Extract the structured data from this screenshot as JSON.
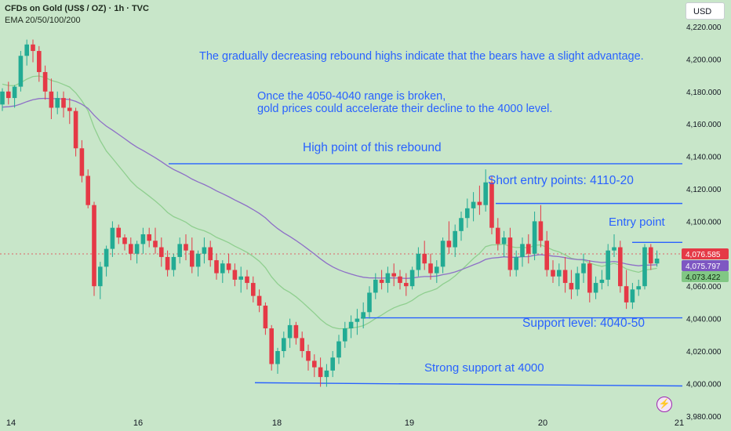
{
  "header": {
    "symbol_title": "CFDs on Gold (US$ / OZ) · 1h · TVC",
    "indicator": "EMA 20/50/100/200"
  },
  "currency_button": "USD",
  "colors": {
    "background": "#c8e6c9",
    "up_candle": "#22ab94",
    "down_candle": "#e53946",
    "annotation_blue": "#2962ff",
    "ema_fast": "#8fcf8f",
    "ema_slow": "#8e6fc7"
  },
  "chart_data": {
    "type": "candlestick",
    "title": "CFDs on Gold (US$ / OZ) · 1h · TVC",
    "x_tick_labels": [
      "14",
      "16",
      "18",
      "19",
      "20",
      "21"
    ],
    "ylim": [
      3975,
      4228
    ],
    "y_tick_labels": [
      "4,220.000",
      "4,200.000",
      "4,180.000",
      "4,160.000",
      "4,140.000",
      "4,120.000",
      "4,100.000",
      "4,080.000",
      "4,060.000",
      "4,040.000",
      "4,020.000",
      "4,000.000",
      "3,980.000"
    ],
    "y_ticks": [
      4220,
      4200,
      4180,
      4160,
      4140,
      4120,
      4100,
      4080,
      4060,
      4040,
      4020,
      4000,
      3980
    ],
    "price_labels": [
      {
        "value": 4076.585,
        "text": "4,076.585",
        "color": "#e53946"
      },
      {
        "value": 4075.797,
        "text": "4,075.797",
        "color": "#7e57c2"
      },
      {
        "value": 4073.422,
        "text": "4,073.422",
        "color": "#81c784"
      }
    ],
    "candles": [
      [
        4172,
        4182,
        4168,
        4180
      ],
      [
        4180,
        4186,
        4172,
        4176
      ],
      [
        4176,
        4184,
        4170,
        4183
      ],
      [
        4183,
        4205,
        4180,
        4202
      ],
      [
        4202,
        4212,
        4196,
        4209
      ],
      [
        4209,
        4212,
        4198,
        4205
      ],
      [
        4205,
        4208,
        4186,
        4192
      ],
      [
        4192,
        4196,
        4175,
        4180
      ],
      [
        4180,
        4188,
        4163,
        4170
      ],
      [
        4170,
        4180,
        4166,
        4176
      ],
      [
        4176,
        4180,
        4164,
        4170
      ],
      [
        4170,
        4176,
        4160,
        4168
      ],
      [
        4168,
        4170,
        4140,
        4145
      ],
      [
        4145,
        4150,
        4124,
        4128
      ],
      [
        4128,
        4132,
        4108,
        4110
      ],
      [
        4110,
        4112,
        4054,
        4060
      ],
      [
        4060,
        4075,
        4052,
        4072
      ],
      [
        4072,
        4085,
        4066,
        4083
      ],
      [
        4083,
        4100,
        4078,
        4096
      ],
      [
        4096,
        4098,
        4086,
        4090
      ],
      [
        4090,
        4092,
        4082,
        4086
      ],
      [
        4086,
        4090,
        4076,
        4080
      ],
      [
        4080,
        4088,
        4074,
        4086
      ],
      [
        4086,
        4096,
        4080,
        4092
      ],
      [
        4092,
        4096,
        4084,
        4088
      ],
      [
        4088,
        4096,
        4080,
        4084
      ],
      [
        4084,
        4090,
        4072,
        4078
      ],
      [
        4078,
        4082,
        4066,
        4070
      ],
      [
        4070,
        4080,
        4066,
        4078
      ],
      [
        4078,
        4090,
        4074,
        4086
      ],
      [
        4086,
        4092,
        4076,
        4082
      ],
      [
        4082,
        4090,
        4068,
        4072
      ],
      [
        4072,
        4082,
        4066,
        4080
      ],
      [
        4080,
        4090,
        4074,
        4084
      ],
      [
        4084,
        4088,
        4072,
        4076
      ],
      [
        4076,
        4080,
        4064,
        4068
      ],
      [
        4068,
        4076,
        4062,
        4074
      ],
      [
        4074,
        4080,
        4068,
        4070
      ],
      [
        4070,
        4074,
        4060,
        4064
      ],
      [
        4064,
        4072,
        4056,
        4066
      ],
      [
        4066,
        4070,
        4058,
        4062
      ],
      [
        4062,
        4066,
        4050,
        4054
      ],
      [
        4054,
        4058,
        4044,
        4048
      ],
      [
        4048,
        4050,
        4030,
        4034
      ],
      [
        4034,
        4036,
        4008,
        4012
      ],
      [
        4012,
        4022,
        4006,
        4020
      ],
      [
        4020,
        4032,
        4016,
        4028
      ],
      [
        4028,
        4040,
        4022,
        4036
      ],
      [
        4036,
        4038,
        4024,
        4028
      ],
      [
        4028,
        4032,
        4016,
        4020
      ],
      [
        4020,
        4024,
        4008,
        4014
      ],
      [
        4014,
        4018,
        4004,
        4010
      ],
      [
        4010,
        4016,
        3998,
        4004
      ],
      [
        4004,
        4012,
        3998,
        4008
      ],
      [
        4008,
        4020,
        4004,
        4016
      ],
      [
        4016,
        4030,
        4012,
        4026
      ],
      [
        4026,
        4038,
        4022,
        4034
      ],
      [
        4034,
        4042,
        4028,
        4038
      ],
      [
        4038,
        4046,
        4030,
        4040
      ],
      [
        4040,
        4050,
        4034,
        4044
      ],
      [
        4044,
        4060,
        4040,
        4056
      ],
      [
        4056,
        4068,
        4052,
        4064
      ],
      [
        4064,
        4070,
        4058,
        4062
      ],
      [
        4062,
        4072,
        4056,
        4068
      ],
      [
        4068,
        4074,
        4060,
        4066
      ],
      [
        4066,
        4070,
        4058,
        4062
      ],
      [
        4062,
        4068,
        4054,
        4060
      ],
      [
        4060,
        4072,
        4058,
        4070
      ],
      [
        4070,
        4084,
        4066,
        4080
      ],
      [
        4080,
        4088,
        4070,
        4074
      ],
      [
        4074,
        4080,
        4064,
        4068
      ],
      [
        4068,
        4076,
        4062,
        4072
      ],
      [
        4072,
        4090,
        4068,
        4088
      ],
      [
        4088,
        4100,
        4080,
        4084
      ],
      [
        4084,
        4098,
        4078,
        4094
      ],
      [
        4094,
        4106,
        4088,
        4102
      ],
      [
        4102,
        4114,
        4096,
        4108
      ],
      [
        4108,
        4118,
        4100,
        4112
      ],
      [
        4112,
        4122,
        4104,
        4110
      ],
      [
        4110,
        4132,
        4106,
        4124
      ],
      [
        4124,
        4128,
        4092,
        4096
      ],
      [
        4096,
        4102,
        4082,
        4086
      ],
      [
        4086,
        4094,
        4078,
        4090
      ],
      [
        4090,
        4096,
        4066,
        4070
      ],
      [
        4070,
        4082,
        4066,
        4078
      ],
      [
        4078,
        4090,
        4072,
        4086
      ],
      [
        4086,
        4092,
        4074,
        4080
      ],
      [
        4080,
        4106,
        4076,
        4100
      ],
      [
        4100,
        4110,
        4084,
        4088
      ],
      [
        4088,
        4094,
        4066,
        4070
      ],
      [
        4070,
        4076,
        4062,
        4066
      ],
      [
        4066,
        4074,
        4060,
        4070
      ],
      [
        4070,
        4078,
        4056,
        4062
      ],
      [
        4062,
        4070,
        4052,
        4058
      ],
      [
        4058,
        4072,
        4054,
        4068
      ],
      [
        4068,
        4080,
        4062,
        4074
      ],
      [
        4074,
        4076,
        4050,
        4056
      ],
      [
        4056,
        4066,
        4052,
        4062
      ],
      [
        4062,
        4070,
        4058,
        4064
      ],
      [
        4064,
        4086,
        4060,
        4082
      ],
      [
        4082,
        4092,
        4078,
        4084
      ],
      [
        4084,
        4088,
        4056,
        4060
      ],
      [
        4060,
        4070,
        4046,
        4050
      ],
      [
        4050,
        4062,
        4046,
        4058
      ],
      [
        4058,
        4064,
        4054,
        4060
      ],
      [
        4060,
        4086,
        4058,
        4084
      ],
      [
        4084,
        4086,
        4070,
        4074
      ],
      [
        4074,
        4082,
        4072,
        4077
      ]
    ],
    "annotations": [
      {
        "text": "The gradually decreasing rebound highs indicate that the bears have a slight advantage."
      },
      {
        "text": "Once the 4050-4040 range is broken,"
      },
      {
        "text": "gold prices could accelerate their decline to the 4000 level."
      },
      {
        "text": "High point of this rebound"
      },
      {
        "text": "Short entry points: 4110-20"
      },
      {
        "text": "Entry point"
      },
      {
        "text": "Support level: 4040-50"
      },
      {
        "text": "Strong support at 4000"
      }
    ],
    "grid": false,
    "moving_averages": [
      "EMA 20",
      "EMA 50",
      "EMA 100",
      "EMA 200"
    ]
  }
}
